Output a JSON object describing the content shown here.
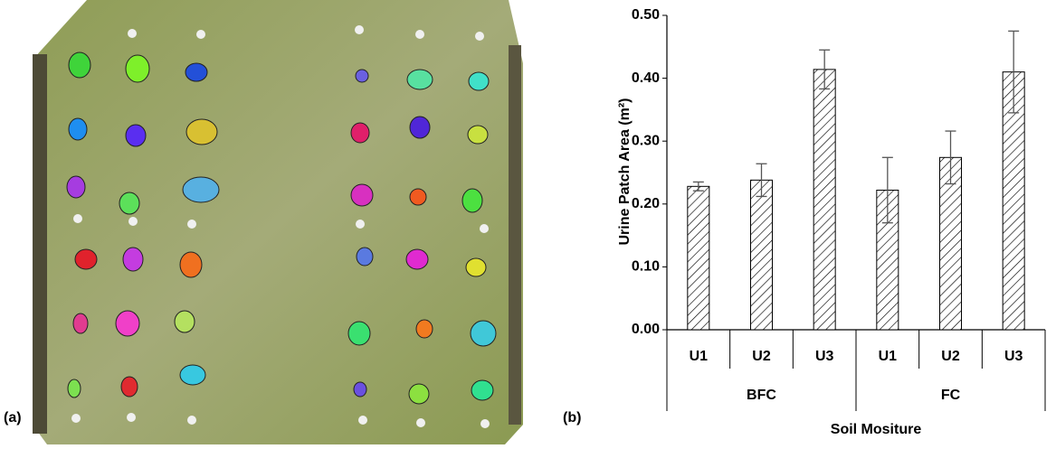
{
  "chart_data": {
    "type": "bar",
    "panel_labels": [
      "(a)",
      "(b)"
    ],
    "categories": [
      "U1",
      "U2",
      "U3",
      "U1",
      "U2",
      "U3"
    ],
    "groups": [
      "BFC",
      "FC"
    ],
    "values": [
      0.228,
      0.238,
      0.414,
      0.222,
      0.274,
      0.41
    ],
    "errors": [
      0.007,
      0.026,
      0.031,
      0.052,
      0.042,
      0.065
    ],
    "x_label": "Soil Mositure",
    "y_label": "Urine  Patch Area (m²)",
    "ylim": [
      0,
      0.5
    ],
    "yticks": [
      {
        "value": 0,
        "label": "0.00"
      },
      {
        "value": 0.1,
        "label": "0.10"
      },
      {
        "value": 0.2,
        "label": "0.20"
      },
      {
        "value": 0.3,
        "label": "0.30"
      },
      {
        "value": 0.4,
        "label": "0.40"
      },
      {
        "value": 0.5,
        "label": "0.50"
      }
    ],
    "color": "#000000"
  }
}
